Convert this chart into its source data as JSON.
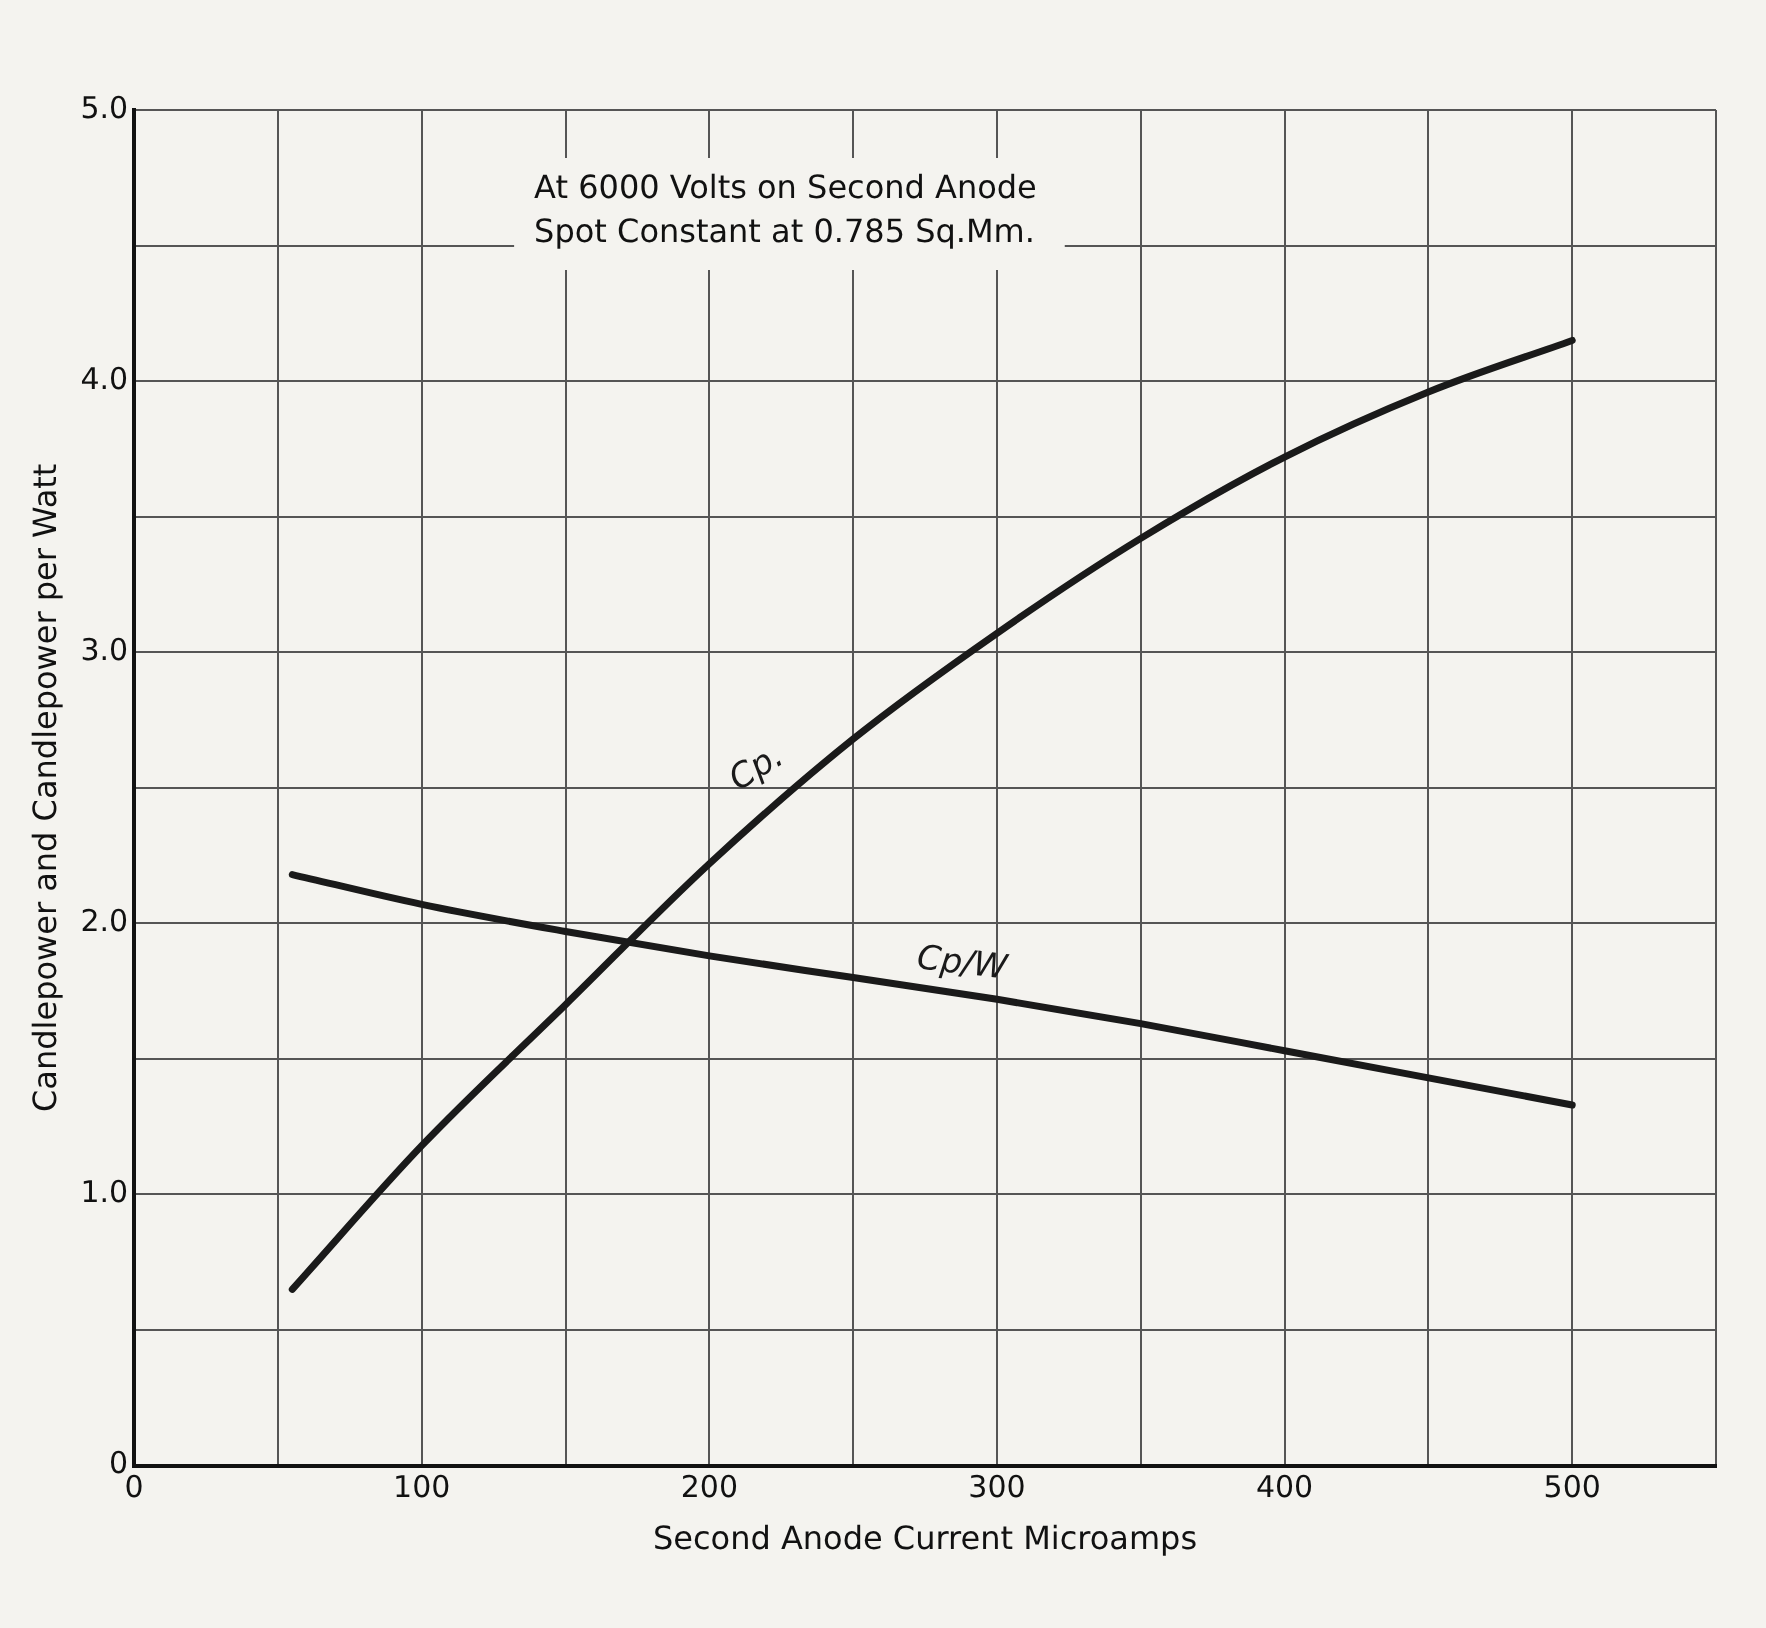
{
  "chart_data": {
    "type": "line",
    "xlabel": "Second Anode Current Microamps",
    "ylabel": "Candlepower and Candlepower per Watt",
    "annotations": [
      "At 6000 Volts on Second Anode",
      "Spot Constant at 0.785 Sq.Mm."
    ],
    "x": [
      55,
      100,
      150,
      200,
      250,
      300,
      350,
      400,
      450,
      500
    ],
    "series": [
      {
        "name": "Cp.",
        "color": "#1a1a1a",
        "values": [
          0.65,
          1.18,
          1.7,
          2.22,
          2.68,
          3.07,
          3.42,
          3.72,
          3.96,
          4.15
        ]
      },
      {
        "name": "Cp/W",
        "color": "#1a1a1a",
        "values": [
          2.18,
          2.07,
          1.97,
          1.88,
          1.8,
          1.72,
          1.63,
          1.53,
          1.43,
          1.33
        ]
      }
    ],
    "xlim": [
      0,
      550
    ],
    "ylim": [
      0,
      5
    ],
    "xticks": [
      0,
      {
        "value": 50,
        "label": null
      },
      100,
      {
        "value": 150,
        "label": null
      },
      200,
      {
        "value": 250,
        "label": null
      },
      300,
      {
        "value": 350,
        "label": null
      },
      400,
      {
        "value": 450,
        "label": null
      },
      500,
      {
        "value": 550,
        "label": null
      }
    ],
    "yticks": [
      0,
      {
        "value": 0.5,
        "label": null
      },
      {
        "value": 1,
        "label": "1.0"
      },
      {
        "value": 1.5,
        "label": null
      },
      {
        "value": 2,
        "label": "2.0"
      },
      {
        "value": 2.5,
        "label": null
      },
      {
        "value": 3,
        "label": "3.0"
      },
      {
        "value": 3.5,
        "label": null
      },
      {
        "value": 4,
        "label": "4.0"
      },
      {
        "value": 4.5,
        "label": null
      },
      {
        "value": 5,
        "label": "5.0"
      }
    ],
    "grid": true,
    "legend": false,
    "marker": "none",
    "line_style": "solid"
  }
}
